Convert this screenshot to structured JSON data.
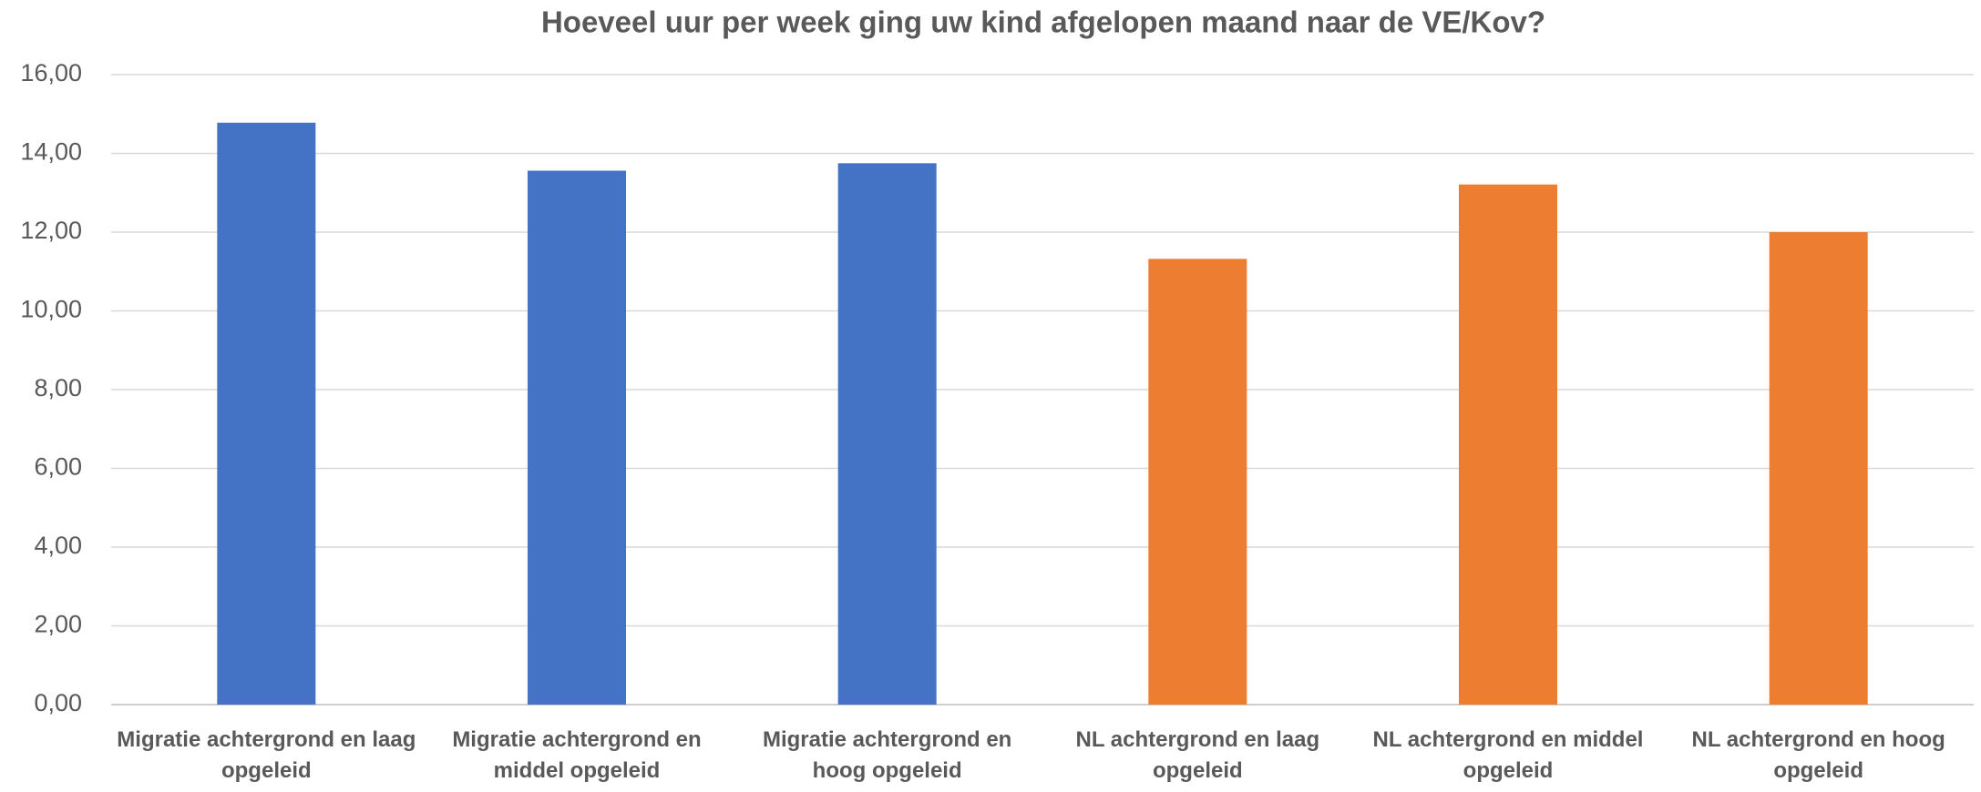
{
  "chart_data": {
    "type": "bar",
    "title": "Hoeveel uur per week ging uw kind afgelopen maand naar de VE/Kov?",
    "categories": [
      "Migratie achtergrond en laag opgeleid",
      "Migratie achtergrond en middel opgeleid",
      "Migratie achtergrond en hoog opgeleid",
      "NL achtergrond en laag opgeleid",
      "NL achtergrond en middel opgeleid",
      "NL achtergrond en hoog opgeleid"
    ],
    "values": [
      14.78,
      13.56,
      13.75,
      11.32,
      13.21,
      12.0
    ],
    "colors": [
      "#4472c4",
      "#4472c4",
      "#4472c4",
      "#ed7d31",
      "#ed7d31",
      "#ed7d31"
    ],
    "ylim": [
      0,
      16
    ],
    "yticks": [
      {
        "value": 0,
        "label": "0,00"
      },
      {
        "value": 2,
        "label": "2,00"
      },
      {
        "value": 4,
        "label": "4,00"
      },
      {
        "value": 6,
        "label": "6,00"
      },
      {
        "value": 8,
        "label": "8,00"
      },
      {
        "value": 10,
        "label": "10,00"
      },
      {
        "value": 12,
        "label": "12,00"
      },
      {
        "value": 14,
        "label": "14,00"
      },
      {
        "value": 16,
        "label": "16,00"
      }
    ],
    "grid": true
  }
}
